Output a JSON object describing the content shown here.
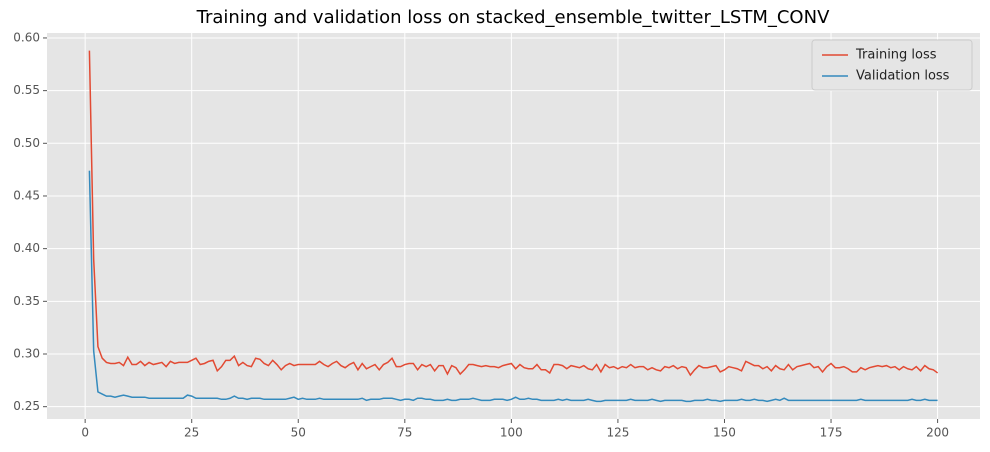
{
  "chart_data": {
    "type": "line",
    "title": "Training and validation loss on stacked_ensemble_twitter_LSTM_CONV",
    "x": [
      1,
      2,
      3,
      4,
      5,
      6,
      7,
      8,
      9,
      10,
      11,
      12,
      13,
      14,
      15,
      16,
      17,
      18,
      19,
      20,
      21,
      22,
      23,
      24,
      25,
      26,
      27,
      28,
      29,
      30,
      31,
      32,
      33,
      34,
      35,
      36,
      37,
      38,
      39,
      40,
      41,
      42,
      43,
      44,
      45,
      46,
      47,
      48,
      49,
      50,
      51,
      52,
      53,
      54,
      55,
      56,
      57,
      58,
      59,
      60,
      61,
      62,
      63,
      64,
      65,
      66,
      67,
      68,
      69,
      70,
      71,
      72,
      73,
      74,
      75,
      76,
      77,
      78,
      79,
      80,
      81,
      82,
      83,
      84,
      85,
      86,
      87,
      88,
      89,
      90,
      91,
      92,
      93,
      94,
      95,
      96,
      97,
      98,
      99,
      100,
      101,
      102,
      103,
      104,
      105,
      106,
      107,
      108,
      109,
      110,
      111,
      112,
      113,
      114,
      115,
      116,
      117,
      118,
      119,
      120,
      121,
      122,
      123,
      124,
      125,
      126,
      127,
      128,
      129,
      130,
      131,
      132,
      133,
      134,
      135,
      136,
      137,
      138,
      139,
      140,
      141,
      142,
      143,
      144,
      145,
      146,
      147,
      148,
      149,
      150,
      151,
      152,
      153,
      154,
      155,
      156,
      157,
      158,
      159,
      160,
      161,
      162,
      163,
      164,
      165,
      166,
      167,
      168,
      169,
      170,
      171,
      172,
      173,
      174,
      175,
      176,
      177,
      178,
      179,
      180,
      181,
      182,
      183,
      184,
      185,
      186,
      187,
      188,
      189,
      190,
      191,
      192,
      193,
      194,
      195,
      196,
      197,
      198,
      199,
      200
    ],
    "series": [
      {
        "name": "Training loss",
        "color": "#E24A33",
        "values": [
          0.588,
          0.39,
          0.307,
          0.296,
          0.292,
          0.291,
          0.291,
          0.292,
          0.289,
          0.297,
          0.29,
          0.29,
          0.293,
          0.289,
          0.292,
          0.29,
          0.291,
          0.292,
          0.288,
          0.293,
          0.291,
          0.292,
          0.292,
          0.292,
          0.294,
          0.296,
          0.29,
          0.291,
          0.293,
          0.294,
          0.284,
          0.288,
          0.294,
          0.294,
          0.298,
          0.289,
          0.292,
          0.289,
          0.288,
          0.296,
          0.295,
          0.291,
          0.289,
          0.294,
          0.29,
          0.285,
          0.289,
          0.291,
          0.289,
          0.29,
          0.29,
          0.29,
          0.29,
          0.29,
          0.293,
          0.29,
          0.288,
          0.291,
          0.293,
          0.289,
          0.287,
          0.29,
          0.292,
          0.285,
          0.291,
          0.286,
          0.288,
          0.29,
          0.285,
          0.29,
          0.292,
          0.296,
          0.288,
          0.288,
          0.29,
          0.291,
          0.291,
          0.285,
          0.29,
          0.288,
          0.29,
          0.284,
          0.289,
          0.289,
          0.281,
          0.289,
          0.287,
          0.281,
          0.285,
          0.29,
          0.29,
          0.289,
          0.288,
          0.289,
          0.288,
          0.288,
          0.287,
          0.289,
          0.29,
          0.291,
          0.286,
          0.29,
          0.287,
          0.286,
          0.286,
          0.29,
          0.285,
          0.285,
          0.282,
          0.29,
          0.29,
          0.289,
          0.286,
          0.289,
          0.288,
          0.287,
          0.289,
          0.286,
          0.285,
          0.29,
          0.283,
          0.29,
          0.287,
          0.288,
          0.286,
          0.288,
          0.287,
          0.29,
          0.287,
          0.288,
          0.288,
          0.285,
          0.287,
          0.285,
          0.284,
          0.288,
          0.287,
          0.289,
          0.286,
          0.288,
          0.287,
          0.28,
          0.285,
          0.289,
          0.287,
          0.287,
          0.288,
          0.289,
          0.283,
          0.285,
          0.288,
          0.287,
          0.286,
          0.284,
          0.293,
          0.291,
          0.289,
          0.289,
          0.286,
          0.288,
          0.284,
          0.289,
          0.286,
          0.285,
          0.29,
          0.285,
          0.288,
          0.289,
          0.29,
          0.291,
          0.287,
          0.288,
          0.283,
          0.288,
          0.291,
          0.287,
          0.287,
          0.288,
          0.286,
          0.283,
          0.283,
          0.287,
          0.285,
          0.287,
          0.288,
          0.289,
          0.288,
          0.289,
          0.287,
          0.288,
          0.285,
          0.288,
          0.286,
          0.285,
          0.288,
          0.284,
          0.289,
          0.286,
          0.285,
          0.282
        ]
      },
      {
        "name": "Validation loss",
        "color": "#348ABD",
        "values": [
          0.474,
          0.303,
          0.264,
          0.262,
          0.26,
          0.26,
          0.259,
          0.26,
          0.261,
          0.26,
          0.259,
          0.259,
          0.259,
          0.259,
          0.258,
          0.258,
          0.258,
          0.258,
          0.258,
          0.258,
          0.258,
          0.258,
          0.258,
          0.261,
          0.26,
          0.258,
          0.258,
          0.258,
          0.258,
          0.258,
          0.258,
          0.257,
          0.257,
          0.258,
          0.26,
          0.258,
          0.258,
          0.257,
          0.258,
          0.258,
          0.258,
          0.257,
          0.257,
          0.257,
          0.257,
          0.257,
          0.257,
          0.258,
          0.259,
          0.257,
          0.258,
          0.257,
          0.257,
          0.257,
          0.258,
          0.257,
          0.257,
          0.257,
          0.257,
          0.257,
          0.257,
          0.257,
          0.257,
          0.257,
          0.258,
          0.256,
          0.257,
          0.257,
          0.257,
          0.258,
          0.258,
          0.258,
          0.257,
          0.256,
          0.257,
          0.257,
          0.256,
          0.258,
          0.258,
          0.257,
          0.257,
          0.256,
          0.256,
          0.256,
          0.257,
          0.256,
          0.256,
          0.257,
          0.257,
          0.257,
          0.258,
          0.257,
          0.256,
          0.256,
          0.256,
          0.257,
          0.257,
          0.257,
          0.256,
          0.257,
          0.259,
          0.257,
          0.257,
          0.258,
          0.257,
          0.257,
          0.256,
          0.256,
          0.256,
          0.256,
          0.257,
          0.256,
          0.257,
          0.256,
          0.256,
          0.256,
          0.256,
          0.257,
          0.256,
          0.255,
          0.255,
          0.256,
          0.256,
          0.256,
          0.256,
          0.256,
          0.256,
          0.257,
          0.256,
          0.256,
          0.256,
          0.256,
          0.257,
          0.256,
          0.255,
          0.256,
          0.256,
          0.256,
          0.256,
          0.256,
          0.255,
          0.255,
          0.256,
          0.256,
          0.256,
          0.257,
          0.256,
          0.256,
          0.255,
          0.256,
          0.256,
          0.256,
          0.256,
          0.257,
          0.256,
          0.256,
          0.257,
          0.256,
          0.256,
          0.255,
          0.256,
          0.257,
          0.256,
          0.258,
          0.256,
          0.256,
          0.256,
          0.256,
          0.256,
          0.256,
          0.256,
          0.256,
          0.256,
          0.256,
          0.256,
          0.256,
          0.256,
          0.256,
          0.256,
          0.256,
          0.256,
          0.257,
          0.256,
          0.256,
          0.256,
          0.256,
          0.256,
          0.256,
          0.256,
          0.256,
          0.256,
          0.256,
          0.256,
          0.257,
          0.256,
          0.256,
          0.257,
          0.256,
          0.256,
          0.256
        ]
      }
    ],
    "xlim": [
      -8.95,
      209.95
    ],
    "xticks": [
      0,
      25,
      50,
      75,
      100,
      125,
      150,
      175,
      200
    ],
    "ylim": [
      0.2383,
      0.6047
    ],
    "yticks": [
      0.25,
      {
        "value": 0.3,
        "label": "0.30"
      },
      0.35,
      {
        "value": 0.4,
        "label": "0.40"
      },
      0.45,
      {
        "value": 0.5,
        "label": "0.50"
      },
      0.55,
      {
        "value": 0.6,
        "label": "0.60"
      }
    ],
    "grid": true,
    "legend": "upper right"
  }
}
